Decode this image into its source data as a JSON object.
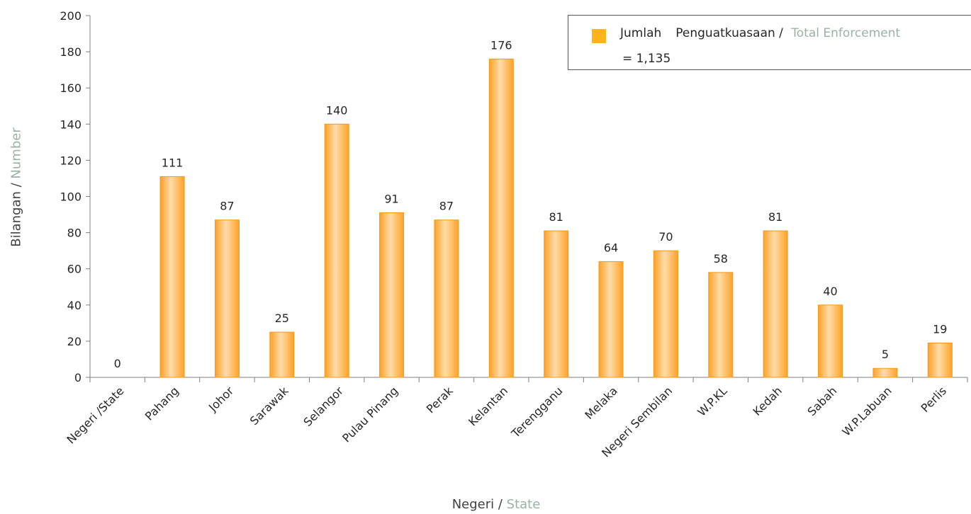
{
  "chart_data": {
    "type": "bar",
    "categories": [
      "Negeri /State",
      "Pahang",
      "Johor",
      "Sarawak",
      "Selangor",
      "Pulau Pinang",
      "Perak",
      "Kelantan",
      "Terengganu",
      "Melaka",
      "Negeri Sembilan",
      "W.P.KL",
      "Kedah",
      "Sabah",
      "W.P.Labuan",
      "Perlis"
    ],
    "values": [
      0,
      111,
      87,
      25,
      140,
      91,
      87,
      176,
      81,
      64,
      70,
      58,
      81,
      40,
      5,
      19
    ],
    "ylim": [
      0,
      200
    ],
    "yticks": [
      0,
      20,
      40,
      60,
      80,
      100,
      120,
      140,
      160,
      180,
      200
    ],
    "ylabel": {
      "primary": "Bilangan / ",
      "secondary": "Number"
    },
    "xlabel": {
      "primary": "Negeri / ",
      "secondary": "State"
    },
    "legend": {
      "position": "top-right",
      "part1": "Jumlah",
      "part2": "Penguatkuasaan / ",
      "part3": "Total Enforcement",
      "line2": "= 1,135"
    },
    "colors": {
      "bar_light": "#ffdca8",
      "bar_dark": "#ffa428",
      "bar_edge": "#f19a1c",
      "accent_text": "#9ab2a6",
      "axis": "#7f7f7f"
    },
    "grid": false
  }
}
